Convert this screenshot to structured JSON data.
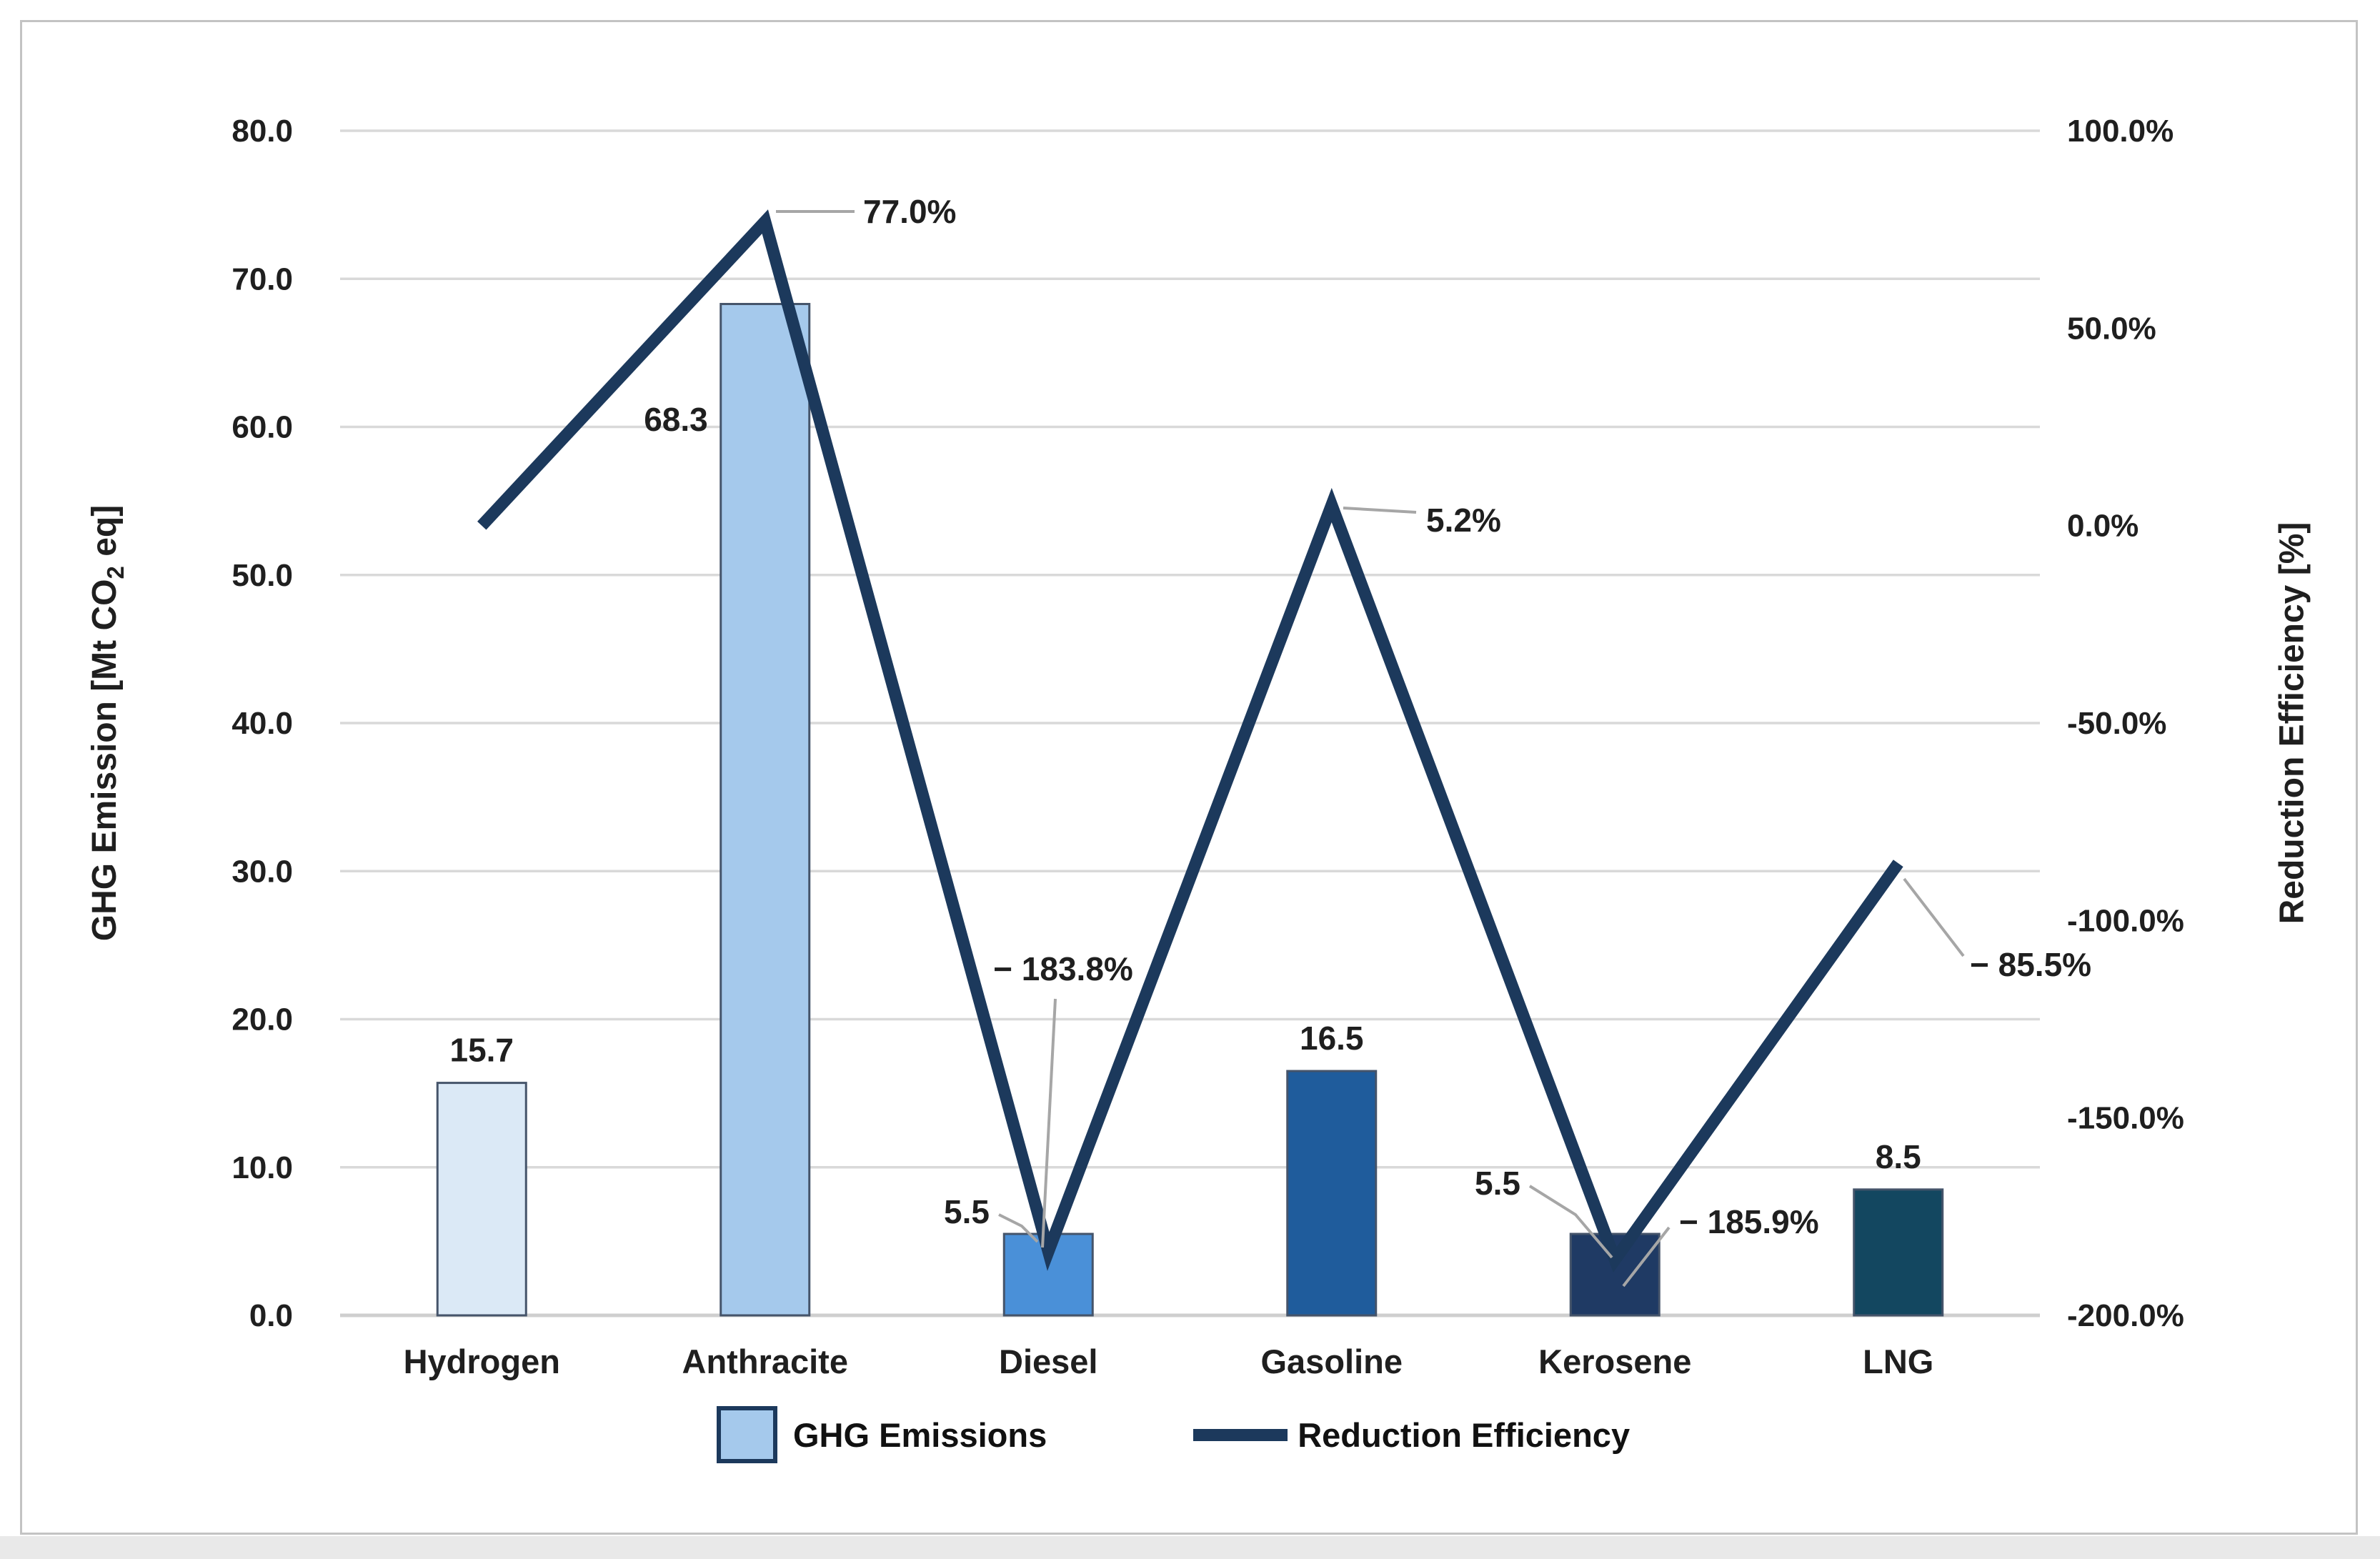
{
  "page": {
    "background": "#ffffff",
    "frame_color": "#c3c3c3",
    "bottom_band_color": "#e9e9e9"
  },
  "chart_data": {
    "type": "combo_bar_line",
    "categories": [
      "Hydrogen",
      "Anthracite",
      "Diesel",
      "Gasoline",
      "Kerosene",
      "LNG"
    ],
    "series": [
      {
        "name": "GHG Emissions",
        "type": "bar",
        "axis": "left",
        "values": [
          15.7,
          68.3,
          5.5,
          16.5,
          5.5,
          8.5
        ],
        "data_labels": [
          "15.7",
          "68.3",
          "5.5",
          "16.5",
          "5.5",
          "8.5"
        ],
        "bar_colors": [
          "#dbe9f6",
          "#a5c9ec",
          "#4a90d8",
          "#1f5c9c",
          "#1f3a64",
          "#134760"
        ],
        "bar_border_color": "#45546a"
      },
      {
        "name": "Reduction Efficiency",
        "type": "line",
        "axis": "right",
        "values": [
          0.0,
          77.0,
          -183.8,
          5.2,
          -185.9,
          -85.5
        ],
        "data_labels": [
          "",
          "77.0%",
          "− 183.8%",
          "5.2%",
          "− 185.9%",
          "− 85.5%"
        ],
        "line_color": "#1c395c"
      }
    ],
    "left_axis": {
      "title_pre": "GHG Emission [Mt CO",
      "title_sub": "2",
      "title_post": " eq]",
      "min": 0,
      "max": 80,
      "step": 10,
      "tick_labels": [
        "80.0",
        "70.0",
        "60.0",
        "50.0",
        "40.0",
        "30.0",
        "20.0",
        "10.0",
        "0.0"
      ]
    },
    "right_axis": {
      "title": "Reduction Efficiency [%]",
      "min": -200,
      "max": 100,
      "step": 50,
      "tick_labels": [
        "100.0%",
        "50.0%",
        "0.0%",
        "-50.0%",
        "-100.0%",
        "-150.0%",
        "-200.0%"
      ]
    },
    "grid": {
      "color": "#d9d9d9",
      "baseline_color": "#cfcfcf"
    },
    "leader_color": "#a6a6a6",
    "text_color": "#1f1f1f",
    "legend": {
      "position": "bottom",
      "items": [
        "GHG Emissions",
        "Reduction Efficiency"
      ]
    }
  }
}
